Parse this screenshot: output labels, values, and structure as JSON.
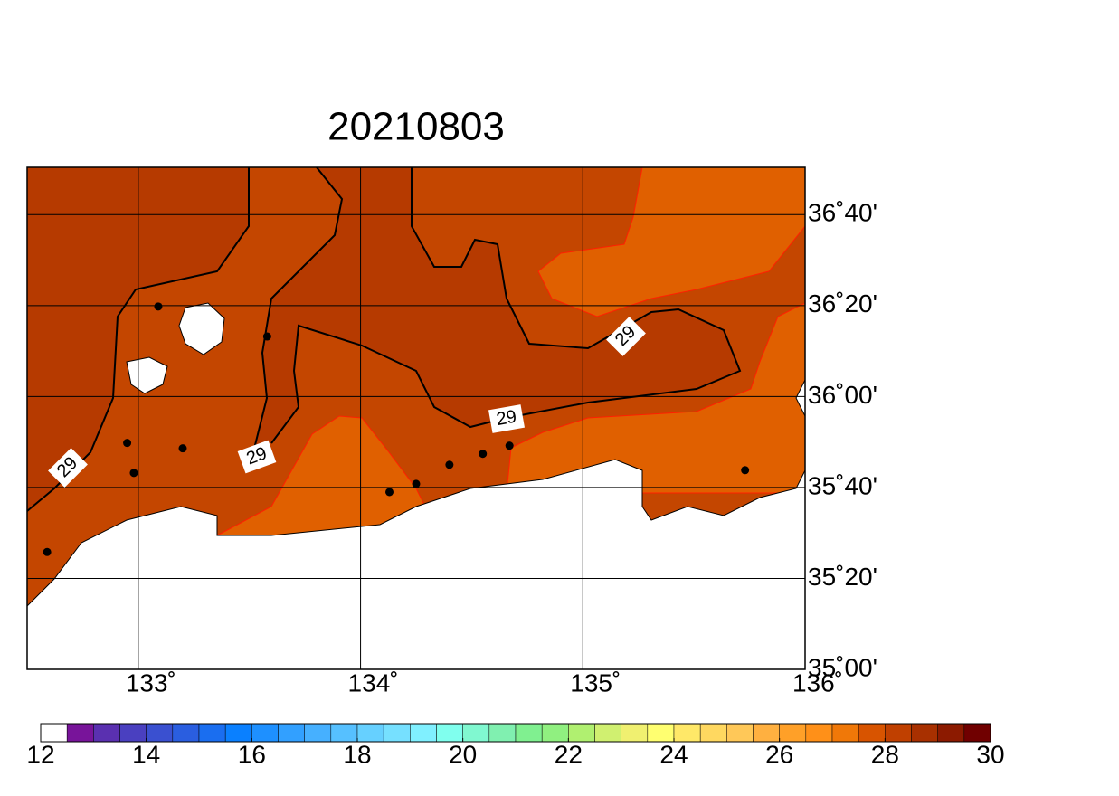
{
  "title": "20210803",
  "map": {
    "xlim": [
      132.5,
      136
    ],
    "ylim": [
      35,
      36.84
    ],
    "xticks": [
      {
        "value": 133,
        "label": "133˚"
      },
      {
        "value": 134,
        "label": "134˚"
      },
      {
        "value": 135,
        "label": "135˚"
      },
      {
        "value": 136,
        "label": "136˚"
      }
    ],
    "yticks": [
      {
        "value": 35,
        "label": "35˚00'"
      },
      {
        "value": 35.3333,
        "label": "35˚20'"
      },
      {
        "value": 35.6667,
        "label": "35˚40'"
      },
      {
        "value": 36,
        "label": "36˚00'"
      },
      {
        "value": 36.3333,
        "label": "36˚20'"
      },
      {
        "value": 36.6667,
        "label": "36˚40'"
      }
    ],
    "contour_labels": [
      29,
      29,
      29,
      29
    ],
    "stations": {
      "lon": [
        133.09,
        133.58,
        132.95,
        133.2,
        132.98,
        132.59,
        134.13,
        134.25,
        134.4,
        134.55,
        134.67,
        135.73
      ],
      "lat": [
        36.33,
        36.22,
        35.83,
        35.81,
        35.72,
        35.43,
        35.65,
        35.68,
        35.75,
        35.79,
        35.82,
        35.73
      ]
    }
  },
  "colorbar": {
    "clim": [
      12,
      30
    ],
    "ticks": [
      12,
      14,
      16,
      18,
      20,
      22,
      24,
      26,
      28,
      30
    ],
    "colors": [
      "#ffffff",
      "#78149a",
      "#5a30b0",
      "#4a40c0",
      "#3a50d0",
      "#2a5ee0",
      "#1a6ef0",
      "#0a80ff",
      "#1e90ff",
      "#32a0ff",
      "#46b0ff",
      "#56c0ff",
      "#66d0ff",
      "#76e0ff",
      "#80f0ff",
      "#80ffee",
      "#80f8d0",
      "#80f0b0",
      "#80f090",
      "#90f080",
      "#b0f070",
      "#d0f070",
      "#f0f070",
      "#ffff70",
      "#ffe868",
      "#ffd860",
      "#ffc858",
      "#ffb040",
      "#ffa028",
      "#ff9018",
      "#f07808",
      "#d85400",
      "#c04000",
      "#a83000",
      "#8c1a00",
      "#700000"
    ]
  }
}
